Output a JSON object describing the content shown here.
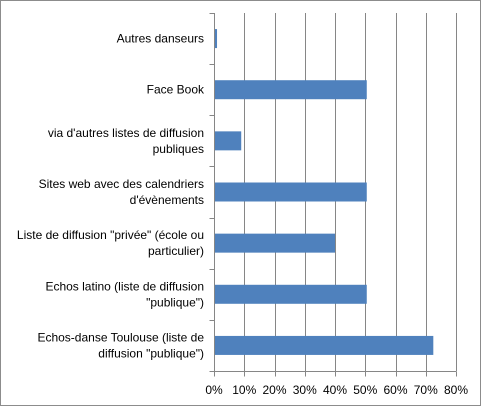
{
  "colors": {
    "bar": "#4f81bd",
    "grid": "#868686",
    "axis": "#868686",
    "text": "#000000"
  },
  "chart_data": {
    "type": "bar",
    "orientation": "horizontal",
    "categories": [
      [
        "Autres danseurs"
      ],
      [
        "Face Book"
      ],
      [
        "via d'autres listes de diffusion",
        "publiques"
      ],
      [
        "Sites web avec des calendriers",
        "d'évènements"
      ],
      [
        "Liste de diffusion \"privée\" (école ou",
        "particulier)"
      ],
      [
        "Echos latino (liste de diffusion",
        "\"publique\")"
      ],
      [
        "Echos-danse Toulouse (liste de",
        "diffusion \"publique\")"
      ]
    ],
    "values": [
      1,
      50.5,
      9,
      50.5,
      40,
      50.5,
      72.5
    ],
    "value_unit": "%",
    "xlim": [
      0,
      80
    ],
    "xticks": [
      0,
      10,
      20,
      30,
      40,
      50,
      60,
      70,
      80
    ],
    "xtick_labels": [
      "0%",
      "10%",
      "20%",
      "30%",
      "40%",
      "50%",
      "60%",
      "70%",
      "80%"
    ],
    "grid": "vertical",
    "legend": "none",
    "title": "",
    "xlabel": "",
    "ylabel": ""
  }
}
